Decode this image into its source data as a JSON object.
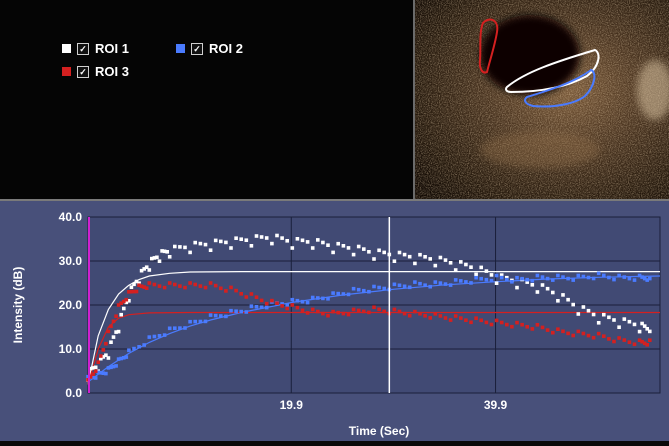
{
  "legend": {
    "items": [
      {
        "label": "ROI 1",
        "color": "#ffffff",
        "checked": true
      },
      {
        "label": "ROI 2",
        "color": "#4a7bff",
        "checked": true
      },
      {
        "label": "ROI 3",
        "color": "#d42020",
        "checked": true
      }
    ]
  },
  "chart_data": {
    "type": "scatter",
    "xlabel": "Time (Sec)",
    "ylabel": "Intensity (dB)",
    "ylim": [
      0,
      40
    ],
    "xlim": [
      0,
      56
    ],
    "x_ticks": [
      19.9,
      39.9
    ],
    "y_ticks": [
      "0.0",
      "10.0",
      "20.0",
      "30.0",
      "40.0"
    ],
    "marker_time": 29.5,
    "grid": true,
    "series": [
      {
        "name": "ROI 1",
        "color": "#ffffff",
        "points": [
          [
            0,
            4
          ],
          [
            1,
            6
          ],
          [
            2,
            9
          ],
          [
            3,
            15
          ],
          [
            4,
            22
          ],
          [
            5,
            26
          ],
          [
            6,
            29
          ],
          [
            7,
            31
          ],
          [
            8,
            32
          ],
          [
            10,
            33
          ],
          [
            12,
            33.5
          ],
          [
            14,
            34
          ],
          [
            16,
            34.5
          ],
          [
            18,
            35
          ],
          [
            20,
            34
          ],
          [
            22,
            34
          ],
          [
            24,
            33
          ],
          [
            26,
            32.5
          ],
          [
            28,
            31.5
          ],
          [
            30,
            31
          ],
          [
            32,
            30.5
          ],
          [
            34,
            30
          ],
          [
            36,
            29
          ],
          [
            38,
            28
          ],
          [
            40,
            26
          ],
          [
            42,
            25
          ],
          [
            44,
            24
          ],
          [
            46,
            22
          ],
          [
            48,
            19
          ],
          [
            50,
            17
          ],
          [
            52,
            16
          ],
          [
            54,
            15
          ],
          [
            55,
            14
          ]
        ],
        "fit": [
          [
            0,
            2
          ],
          [
            1,
            13
          ],
          [
            2,
            19
          ],
          [
            3,
            22.5
          ],
          [
            4,
            24.5
          ],
          [
            5,
            25.8
          ],
          [
            6,
            26.6
          ],
          [
            8,
            27.2
          ],
          [
            10,
            27.5
          ],
          [
            15,
            27.6
          ],
          [
            56,
            27.6
          ]
        ]
      },
      {
        "name": "ROI 2",
        "color": "#4a7bff",
        "points": [
          [
            0,
            3
          ],
          [
            1,
            4
          ],
          [
            2,
            5
          ],
          [
            3,
            7
          ],
          [
            4,
            9
          ],
          [
            6,
            12
          ],
          [
            8,
            14
          ],
          [
            10,
            15.5
          ],
          [
            12,
            17
          ],
          [
            14,
            18
          ],
          [
            16,
            19
          ],
          [
            18,
            20
          ],
          [
            20,
            20.5
          ],
          [
            22,
            21
          ],
          [
            24,
            22
          ],
          [
            26,
            23
          ],
          [
            28,
            23.5
          ],
          [
            30,
            24
          ],
          [
            32,
            24.5
          ],
          [
            34,
            24.5
          ],
          [
            36,
            25
          ],
          [
            38,
            25.5
          ],
          [
            40,
            26
          ],
          [
            42,
            25.5
          ],
          [
            44,
            26
          ],
          [
            46,
            26
          ],
          [
            48,
            26
          ],
          [
            50,
            26.5
          ],
          [
            52,
            26
          ],
          [
            54,
            26
          ],
          [
            55,
            26
          ]
        ],
        "fit": [
          [
            0,
            2.5
          ],
          [
            2,
            6
          ],
          [
            4,
            9
          ],
          [
            6,
            11.5
          ],
          [
            8,
            13.5
          ],
          [
            10,
            15.2
          ],
          [
            12,
            16.6
          ],
          [
            15,
            18.3
          ],
          [
            20,
            20.6
          ],
          [
            25,
            22.3
          ],
          [
            30,
            23.6
          ],
          [
            35,
            24.6
          ],
          [
            40,
            25.3
          ],
          [
            45,
            25.9
          ],
          [
            50,
            26.3
          ],
          [
            56,
            26.6
          ]
        ]
      },
      {
        "name": "ROI 3",
        "color": "#d42020",
        "points": [
          [
            0,
            3
          ],
          [
            1,
            7
          ],
          [
            2,
            14
          ],
          [
            3,
            20
          ],
          [
            4,
            23
          ],
          [
            5,
            24.5
          ],
          [
            6,
            25
          ],
          [
            8,
            25
          ],
          [
            10,
            25
          ],
          [
            12,
            25
          ],
          [
            14,
            24
          ],
          [
            16,
            22.5
          ],
          [
            18,
            21
          ],
          [
            20,
            20
          ],
          [
            22,
            19
          ],
          [
            24,
            18.5
          ],
          [
            26,
            19
          ],
          [
            28,
            19.5
          ],
          [
            30,
            19
          ],
          [
            32,
            18.5
          ],
          [
            34,
            18
          ],
          [
            36,
            17.5
          ],
          [
            38,
            17
          ],
          [
            40,
            16.5
          ],
          [
            42,
            16
          ],
          [
            44,
            15.5
          ],
          [
            46,
            14.5
          ],
          [
            48,
            14
          ],
          [
            50,
            13.5
          ],
          [
            52,
            12.5
          ],
          [
            54,
            12
          ],
          [
            55,
            12
          ]
        ],
        "fit": [
          [
            0,
            2
          ],
          [
            1,
            10
          ],
          [
            2,
            15
          ],
          [
            3,
            17
          ],
          [
            4,
            17.8
          ],
          [
            6,
            18.2
          ],
          [
            10,
            18.3
          ],
          [
            56,
            18.3
          ]
        ]
      }
    ]
  }
}
